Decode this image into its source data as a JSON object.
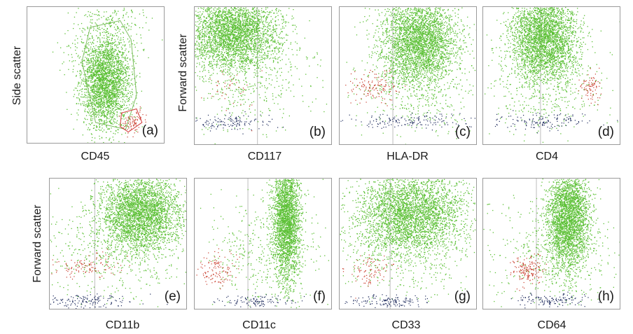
{
  "colors": {
    "main_population": "#5cc036",
    "red_population": "#c83a2a",
    "dark_population": "#1d2a5c",
    "gate": "#7fbf62",
    "red_gate": "#d23a3a",
    "axis_divider": "#bdbdbd"
  },
  "chart_data": [
    {
      "type": "scatter",
      "panel_label": "(a)",
      "xlabel": "CD45",
      "ylabel": "Side scatter",
      "xlim": [
        0,
        1
      ],
      "ylim": [
        0,
        1
      ],
      "quadrant_x": null,
      "populations": [
        {
          "color": "main",
          "center": [
            0.57,
            0.45
          ],
          "spread": [
            0.09,
            0.17
          ],
          "count": 2600
        },
        {
          "color": "main",
          "center": [
            0.57,
            0.7
          ],
          "spread": [
            0.16,
            0.16
          ],
          "count": 240
        },
        {
          "color": "main",
          "center": [
            0.62,
            0.93
          ],
          "spread": [
            0.1,
            0.05
          ],
          "count": 90
        },
        {
          "color": "red",
          "center": [
            0.77,
            0.16
          ],
          "spread": [
            0.05,
            0.04
          ],
          "count": 90
        }
      ],
      "gates": [
        {
          "color": "gate",
          "points": [
            [
              0.46,
              0.85
            ],
            [
              0.68,
              0.9
            ],
            [
              0.76,
              0.76
            ],
            [
              0.8,
              0.35
            ],
            [
              0.72,
              0.1
            ],
            [
              0.5,
              0.15
            ],
            [
              0.4,
              0.6
            ]
          ]
        },
        {
          "color": "red_gate",
          "points": [
            [
              0.69,
              0.22
            ],
            [
              0.8,
              0.25
            ],
            [
              0.84,
              0.15
            ],
            [
              0.74,
              0.08
            ],
            [
              0.68,
              0.12
            ]
          ]
        }
      ]
    },
    {
      "type": "scatter",
      "panel_label": "(b)",
      "xlabel": "CD117",
      "ylabel": "Forward scatter",
      "xlim": [
        0,
        1
      ],
      "ylim": [
        0,
        1
      ],
      "quadrant_x": 0.46,
      "populations": [
        {
          "color": "main",
          "center": [
            0.27,
            0.82
          ],
          "spread": [
            0.17,
            0.13
          ],
          "count": 3200
        },
        {
          "color": "main",
          "center": [
            0.35,
            0.5
          ],
          "spread": [
            0.25,
            0.18
          ],
          "count": 500
        },
        {
          "color": "red",
          "center": [
            0.25,
            0.4
          ],
          "spread": [
            0.1,
            0.08
          ],
          "count": 40
        },
        {
          "color": "dark",
          "center": [
            0.24,
            0.16
          ],
          "spread": [
            0.17,
            0.03
          ],
          "count": 140
        }
      ]
    },
    {
      "type": "scatter",
      "panel_label": "(c)",
      "xlabel": "HLA-DR",
      "ylabel": "",
      "xlim": [
        0,
        1
      ],
      "ylim": [
        0,
        1
      ],
      "quadrant_x": 0.39,
      "populations": [
        {
          "color": "main",
          "center": [
            0.58,
            0.76
          ],
          "spread": [
            0.14,
            0.17
          ],
          "count": 3200
        },
        {
          "color": "main",
          "center": [
            0.55,
            0.44
          ],
          "spread": [
            0.22,
            0.18
          ],
          "count": 450
        },
        {
          "color": "red",
          "center": [
            0.26,
            0.42
          ],
          "spread": [
            0.09,
            0.06
          ],
          "count": 130
        },
        {
          "color": "dark",
          "center": [
            0.53,
            0.17
          ],
          "spread": [
            0.25,
            0.03
          ],
          "count": 160
        }
      ]
    },
    {
      "type": "scatter",
      "panel_label": "(d)",
      "xlabel": "CD4",
      "ylabel": "",
      "xlim": [
        0,
        1
      ],
      "ylim": [
        0,
        1
      ],
      "quadrant_x": 0.42,
      "populations": [
        {
          "color": "main",
          "center": [
            0.44,
            0.78
          ],
          "spread": [
            0.12,
            0.16
          ],
          "count": 3100
        },
        {
          "color": "main",
          "center": [
            0.45,
            0.45
          ],
          "spread": [
            0.24,
            0.2
          ],
          "count": 450
        },
        {
          "color": "red",
          "center": [
            0.78,
            0.41
          ],
          "spread": [
            0.04,
            0.06
          ],
          "count": 80
        },
        {
          "color": "dark",
          "center": [
            0.42,
            0.17
          ],
          "spread": [
            0.18,
            0.03
          ],
          "count": 140
        }
      ]
    },
    {
      "type": "scatter",
      "panel_label": "(e)",
      "xlabel": "CD11b",
      "ylabel": "Forward scatter",
      "xlim": [
        0,
        1
      ],
      "ylim": [
        0,
        1
      ],
      "quadrant_x": 0.33,
      "populations": [
        {
          "color": "main",
          "center": [
            0.67,
            0.74
          ],
          "spread": [
            0.15,
            0.15
          ],
          "count": 3200
        },
        {
          "color": "main",
          "center": [
            0.45,
            0.45
          ],
          "spread": [
            0.27,
            0.2
          ],
          "count": 500
        },
        {
          "color": "red",
          "center": [
            0.27,
            0.33
          ],
          "spread": [
            0.13,
            0.05
          ],
          "count": 110
        },
        {
          "color": "dark",
          "center": [
            0.26,
            0.06
          ],
          "spread": [
            0.17,
            0.025
          ],
          "count": 150
        }
      ]
    },
    {
      "type": "scatter",
      "panel_label": "(f)",
      "xlabel": "CD11c",
      "ylabel": "",
      "xlim": [
        0,
        1
      ],
      "ylim": [
        0,
        1
      ],
      "quadrant_x": 0.39,
      "populations": [
        {
          "color": "main",
          "center": [
            0.67,
            0.68
          ],
          "spread": [
            0.05,
            0.23
          ],
          "count": 2600
        },
        {
          "color": "main",
          "center": [
            0.52,
            0.45
          ],
          "spread": [
            0.22,
            0.2
          ],
          "count": 450
        },
        {
          "color": "red",
          "center": [
            0.16,
            0.3
          ],
          "spread": [
            0.08,
            0.06
          ],
          "count": 120
        },
        {
          "color": "dark",
          "center": [
            0.47,
            0.06
          ],
          "spread": [
            0.15,
            0.025
          ],
          "count": 110
        }
      ]
    },
    {
      "type": "scatter",
      "panel_label": "(g)",
      "xlabel": "CD33",
      "ylabel": "",
      "xlim": [
        0,
        1
      ],
      "ylim": [
        0,
        1
      ],
      "quadrant_x": 0.37,
      "populations": [
        {
          "color": "main",
          "center": [
            0.52,
            0.74
          ],
          "spread": [
            0.2,
            0.16
          ],
          "count": 3300
        },
        {
          "color": "main",
          "center": [
            0.45,
            0.45
          ],
          "spread": [
            0.27,
            0.2
          ],
          "count": 450
        },
        {
          "color": "red",
          "center": [
            0.22,
            0.3
          ],
          "spread": [
            0.08,
            0.06
          ],
          "count": 90
        },
        {
          "color": "dark",
          "center": [
            0.35,
            0.06
          ],
          "spread": [
            0.14,
            0.025
          ],
          "count": 140
        }
      ]
    },
    {
      "type": "scatter",
      "panel_label": "(h)",
      "xlabel": "CD64",
      "ylabel": "",
      "xlim": [
        0,
        1
      ],
      "ylim": [
        0,
        1
      ],
      "quadrant_x": 0.39,
      "populations": [
        {
          "color": "main",
          "center": [
            0.62,
            0.7
          ],
          "spread": [
            0.08,
            0.2
          ],
          "count": 2900
        },
        {
          "color": "main",
          "center": [
            0.52,
            0.42
          ],
          "spread": [
            0.25,
            0.2
          ],
          "count": 450
        },
        {
          "color": "red",
          "center": [
            0.32,
            0.3
          ],
          "spread": [
            0.06,
            0.05
          ],
          "count": 160
        },
        {
          "color": "dark",
          "center": [
            0.5,
            0.07
          ],
          "spread": [
            0.14,
            0.025
          ],
          "count": 130
        }
      ]
    }
  ]
}
